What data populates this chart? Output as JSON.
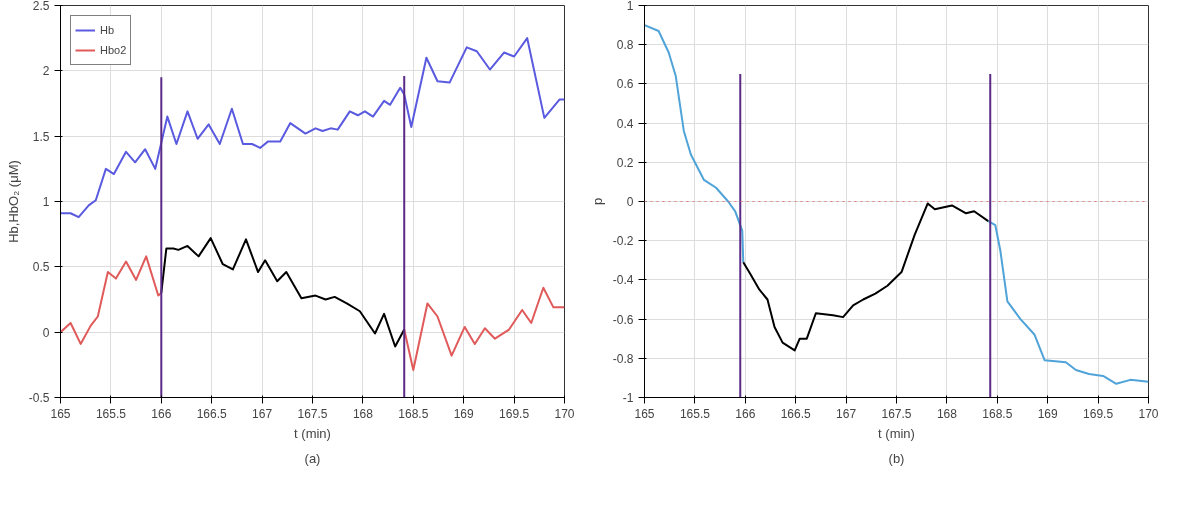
{
  "chart_data": [
    {
      "type": "line",
      "xlabel": "t (min)",
      "ylabel": "Hb,HbO₂ (μM)",
      "annotations": [
        "(a)"
      ],
      "xlim": [
        165,
        170
      ],
      "xticks": [
        165,
        165.5,
        166,
        166.5,
        167,
        167.5,
        168,
        168.5,
        169,
        169.5,
        170
      ],
      "ylim": [
        -0.5,
        2.5
      ],
      "yticks": [
        -0.5,
        0,
        0.5,
        1,
        1.5,
        2,
        2.5
      ],
      "grid": true,
      "legend": "top left",
      "series": [
        {
          "name": "Hb",
          "color": "#5a5ae0",
          "x": [
            165.0,
            165.1,
            165.18,
            165.28,
            165.35,
            165.45,
            165.53,
            165.65,
            165.74,
            165.84,
            165.94,
            166.0,
            166.06,
            166.15,
            166.26,
            166.36,
            166.47,
            166.58,
            166.7,
            166.81,
            166.9,
            166.98,
            167.06,
            167.18,
            167.28,
            167.43,
            167.53,
            167.6,
            167.68,
            167.75,
            167.87,
            167.95,
            168.02,
            168.1,
            168.21,
            168.27,
            168.37,
            168.41,
            168.48,
            168.63,
            168.74,
            168.86,
            169.03,
            169.13,
            169.26,
            169.4,
            169.5,
            169.63,
            169.8,
            169.95,
            170.0
          ],
          "values": [
            0.91,
            0.91,
            0.88,
            0.97,
            1.01,
            1.25,
            1.21,
            1.38,
            1.3,
            1.4,
            1.25,
            1.45,
            1.65,
            1.44,
            1.69,
            1.48,
            1.59,
            1.44,
            1.71,
            1.44,
            1.44,
            1.41,
            1.46,
            1.46,
            1.6,
            1.52,
            1.56,
            1.54,
            1.56,
            1.55,
            1.69,
            1.66,
            1.69,
            1.65,
            1.77,
            1.74,
            1.87,
            1.82,
            1.57,
            2.1,
            1.92,
            1.91,
            2.18,
            2.15,
            2.01,
            2.14,
            2.11,
            2.25,
            1.64,
            1.78,
            1.78
          ]
        },
        {
          "name": "Hbo2",
          "color": "#e05a5a",
          "x": [
            165.0,
            165.1,
            165.2,
            165.3,
            165.37,
            165.47,
            165.55,
            165.65,
            165.75,
            165.85,
            165.97,
            166.0,
            167.2,
            168.41,
            168.5,
            168.64,
            168.74,
            168.88,
            169.01,
            169.11,
            169.21,
            169.31,
            169.45,
            169.58,
            169.67,
            169.79,
            169.89,
            170.0
          ],
          "values": [
            0.0,
            0.07,
            -0.09,
            0.05,
            0.12,
            0.46,
            0.41,
            0.54,
            0.4,
            0.58,
            0.28,
            0.3,
            null,
            0.02,
            -0.29,
            0.22,
            0.12,
            -0.18,
            0.04,
            -0.09,
            0.03,
            -0.05,
            0.02,
            0.17,
            0.07,
            0.34,
            0.19,
            0.19
          ]
        },
        {
          "color": "#000000",
          "x": [
            166.0,
            166.05,
            166.12,
            166.17,
            166.26,
            166.37,
            166.49,
            166.61,
            166.71,
            166.84,
            166.96,
            167.03,
            167.15,
            167.24,
            167.39,
            167.53,
            167.63,
            167.72,
            167.84,
            167.97,
            168.12,
            168.21,
            168.32,
            168.41
          ],
          "values": [
            0.3,
            0.64,
            0.64,
            0.63,
            0.66,
            0.58,
            0.72,
            0.52,
            0.48,
            0.71,
            0.46,
            0.55,
            0.39,
            0.46,
            0.26,
            0.28,
            0.25,
            0.27,
            0.22,
            0.16,
            -0.01,
            0.14,
            -0.11,
            0.02
          ]
        },
        {
          "color": "#5b2a86",
          "x": [
            166.0,
            166.0
          ],
          "values": [
            -0.5,
            1.95
          ]
        },
        {
          "color": "#5b2a86",
          "x": [
            168.41,
            168.41
          ],
          "values": [
            -0.5,
            1.96
          ]
        }
      ]
    },
    {
      "type": "line",
      "xlabel": "t (min)",
      "ylabel": "p",
      "annotations": [
        "(b)"
      ],
      "xlim": [
        165,
        170
      ],
      "xticks": [
        165,
        165.5,
        166,
        166.5,
        167,
        167.5,
        168,
        168.5,
        169,
        169.5,
        170
      ],
      "ylim": [
        -1,
        1
      ],
      "yticks": [
        -1,
        -0.8,
        -0.6,
        -0.4,
        -0.2,
        0,
        0.2,
        0.4,
        0.6,
        0.8,
        1
      ],
      "grid": true,
      "ref_lines": [
        {
          "axis": "y",
          "value": 0,
          "color": "#e08080",
          "line_style": "dotted"
        }
      ],
      "series": [
        {
          "color": "#4fa3d8",
          "x": [
            165.0,
            165.14,
            165.24,
            165.31,
            165.39,
            165.46,
            165.59,
            165.71,
            165.83,
            165.9,
            165.97,
            165.98,
            167.2,
            168.41,
            168.48,
            168.53,
            168.6,
            168.73,
            168.87,
            168.97,
            169.18,
            169.28,
            169.41,
            169.55,
            169.68,
            169.82,
            170.0
          ],
          "values": [
            0.9,
            0.87,
            0.76,
            0.64,
            0.36,
            0.24,
            0.11,
            0.07,
            0.0,
            -0.05,
            -0.15,
            -0.31,
            null,
            -0.1,
            -0.12,
            -0.25,
            -0.51,
            -0.6,
            -0.68,
            -0.81,
            -0.82,
            -0.86,
            -0.88,
            -0.89,
            -0.93,
            -0.91,
            -0.92
          ]
        },
        {
          "color": "#000000",
          "x": [
            165.98,
            166.05,
            166.14,
            166.22,
            166.29,
            166.37,
            166.49,
            166.54,
            166.61,
            166.7,
            166.87,
            166.97,
            167.07,
            167.17,
            167.29,
            167.41,
            167.55,
            167.68,
            167.81,
            167.88,
            168.05,
            168.19,
            168.27,
            168.41
          ],
          "values": [
            -0.31,
            -0.37,
            -0.45,
            -0.5,
            -0.64,
            -0.72,
            -0.76,
            -0.7,
            -0.7,
            -0.57,
            -0.58,
            -0.59,
            -0.53,
            -0.5,
            -0.47,
            -0.43,
            -0.36,
            -0.17,
            -0.01,
            -0.04,
            -0.02,
            -0.06,
            -0.05,
            -0.1
          ]
        },
        {
          "color": "#5b2a86",
          "x": [
            165.95,
            165.95
          ],
          "values": [
            -1,
            0.65
          ]
        },
        {
          "color": "#5b2a86",
          "x": [
            168.43,
            168.43
          ],
          "values": [
            -1,
            0.65
          ]
        }
      ]
    }
  ]
}
